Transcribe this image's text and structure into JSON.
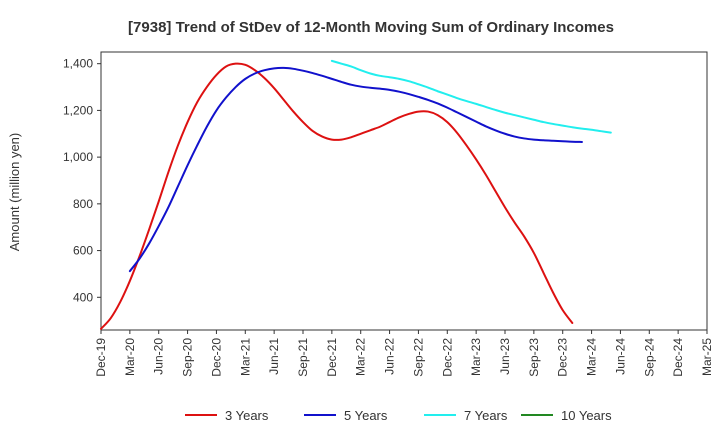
{
  "chart_data": {
    "type": "line",
    "title": "[7938]  Trend of StDev of 12-Month Moving Sum of Ordinary Incomes",
    "xlabel": "",
    "ylabel": "Amount (million yen)",
    "ylim": [
      260,
      1450
    ],
    "yticks": [
      400,
      600,
      800,
      1000,
      1200,
      1400
    ],
    "ytick_labels": [
      "400",
      "600",
      "800",
      "1,000",
      "1,200",
      "1,400"
    ],
    "x_range": [
      0,
      63
    ],
    "xticks": [
      {
        "pos": 0,
        "label": "Dec-19"
      },
      {
        "pos": 3,
        "label": "Mar-20"
      },
      {
        "pos": 6,
        "label": "Jun-20"
      },
      {
        "pos": 9,
        "label": "Sep-20"
      },
      {
        "pos": 12,
        "label": "Dec-20"
      },
      {
        "pos": 15,
        "label": "Mar-21"
      },
      {
        "pos": 18,
        "label": "Jun-21"
      },
      {
        "pos": 21,
        "label": "Sep-21"
      },
      {
        "pos": 24,
        "label": "Dec-21"
      },
      {
        "pos": 27,
        "label": "Mar-22"
      },
      {
        "pos": 30,
        "label": "Jun-22"
      },
      {
        "pos": 33,
        "label": "Sep-22"
      },
      {
        "pos": 36,
        "label": "Dec-22"
      },
      {
        "pos": 39,
        "label": "Mar-23"
      },
      {
        "pos": 42,
        "label": "Jun-23"
      },
      {
        "pos": 45,
        "label": "Sep-23"
      },
      {
        "pos": 48,
        "label": "Dec-23"
      },
      {
        "pos": 51,
        "label": "Mar-24"
      },
      {
        "pos": 54,
        "label": "Jun-24"
      },
      {
        "pos": 57,
        "label": "Sep-24"
      },
      {
        "pos": 60,
        "label": "Dec-24"
      },
      {
        "pos": 63,
        "label": "Mar-25"
      }
    ],
    "grid": true,
    "legend_position": "bottom",
    "series": [
      {
        "name": "3 Years",
        "color": "#dd1111",
        "points": [
          [
            0,
            265
          ],
          [
            1,
            310
          ],
          [
            2,
            380
          ],
          [
            3,
            470
          ],
          [
            4,
            575
          ],
          [
            5,
            690
          ],
          [
            6,
            810
          ],
          [
            7,
            935
          ],
          [
            8,
            1050
          ],
          [
            9,
            1150
          ],
          [
            10,
            1235
          ],
          [
            11,
            1300
          ],
          [
            12,
            1352
          ],
          [
            13,
            1388
          ],
          [
            14,
            1400
          ],
          [
            15,
            1395
          ],
          [
            16,
            1372
          ],
          [
            17,
            1338
          ],
          [
            18,
            1295
          ],
          [
            19,
            1245
          ],
          [
            20,
            1195
          ],
          [
            21,
            1150
          ],
          [
            22,
            1112
          ],
          [
            23,
            1088
          ],
          [
            24,
            1075
          ],
          [
            25,
            1075
          ],
          [
            26,
            1085
          ],
          [
            27,
            1100
          ],
          [
            28,
            1115
          ],
          [
            29,
            1130
          ],
          [
            30,
            1150
          ],
          [
            31,
            1170
          ],
          [
            32,
            1185
          ],
          [
            33,
            1195
          ],
          [
            34,
            1195
          ],
          [
            35,
            1180
          ],
          [
            36,
            1150
          ],
          [
            37,
            1105
          ],
          [
            38,
            1050
          ],
          [
            39,
            990
          ],
          [
            40,
            925
          ],
          [
            41,
            855
          ],
          [
            42,
            785
          ],
          [
            43,
            720
          ],
          [
            44,
            660
          ],
          [
            45,
            590
          ],
          [
            46,
            505
          ],
          [
            47,
            420
          ],
          [
            48,
            345
          ],
          [
            49,
            290
          ]
        ]
      },
      {
        "name": "5 Years",
        "color": "#1111cc",
        "points": [
          [
            3,
            512
          ],
          [
            4,
            565
          ],
          [
            5,
            630
          ],
          [
            6,
            705
          ],
          [
            7,
            785
          ],
          [
            8,
            875
          ],
          [
            9,
            965
          ],
          [
            10,
            1050
          ],
          [
            11,
            1130
          ],
          [
            12,
            1200
          ],
          [
            13,
            1255
          ],
          [
            14,
            1300
          ],
          [
            15,
            1335
          ],
          [
            16,
            1358
          ],
          [
            17,
            1372
          ],
          [
            18,
            1380
          ],
          [
            19,
            1382
          ],
          [
            20,
            1378
          ],
          [
            21,
            1370
          ],
          [
            22,
            1360
          ],
          [
            23,
            1348
          ],
          [
            24,
            1335
          ],
          [
            25,
            1322
          ],
          [
            26,
            1310
          ],
          [
            27,
            1302
          ],
          [
            28,
            1297
          ],
          [
            29,
            1293
          ],
          [
            30,
            1288
          ],
          [
            31,
            1280
          ],
          [
            32,
            1270
          ],
          [
            33,
            1258
          ],
          [
            34,
            1245
          ],
          [
            35,
            1230
          ],
          [
            36,
            1212
          ],
          [
            37,
            1192
          ],
          [
            38,
            1172
          ],
          [
            39,
            1152
          ],
          [
            40,
            1132
          ],
          [
            41,
            1115
          ],
          [
            42,
            1100
          ],
          [
            43,
            1088
          ],
          [
            44,
            1080
          ],
          [
            45,
            1075
          ],
          [
            46,
            1072
          ],
          [
            47,
            1070
          ],
          [
            48,
            1068
          ],
          [
            49,
            1066
          ],
          [
            50,
            1065
          ]
        ]
      },
      {
        "name": "7 Years",
        "color": "#22eeee",
        "points": [
          [
            24,
            1412
          ],
          [
            25,
            1400
          ],
          [
            26,
            1388
          ],
          [
            27,
            1372
          ],
          [
            28,
            1358
          ],
          [
            29,
            1348
          ],
          [
            30,
            1342
          ],
          [
            31,
            1335
          ],
          [
            32,
            1325
          ],
          [
            33,
            1312
          ],
          [
            34,
            1298
          ],
          [
            35,
            1282
          ],
          [
            36,
            1268
          ],
          [
            37,
            1253
          ],
          [
            38,
            1240
          ],
          [
            39,
            1228
          ],
          [
            40,
            1215
          ],
          [
            41,
            1202
          ],
          [
            42,
            1190
          ],
          [
            43,
            1180
          ],
          [
            44,
            1170
          ],
          [
            45,
            1160
          ],
          [
            46,
            1150
          ],
          [
            47,
            1142
          ],
          [
            48,
            1135
          ],
          [
            49,
            1128
          ],
          [
            50,
            1122
          ],
          [
            51,
            1117
          ],
          [
            52,
            1111
          ],
          [
            53,
            1105
          ]
        ]
      },
      {
        "name": "10 Years",
        "color": "#228822",
        "points": []
      }
    ]
  }
}
